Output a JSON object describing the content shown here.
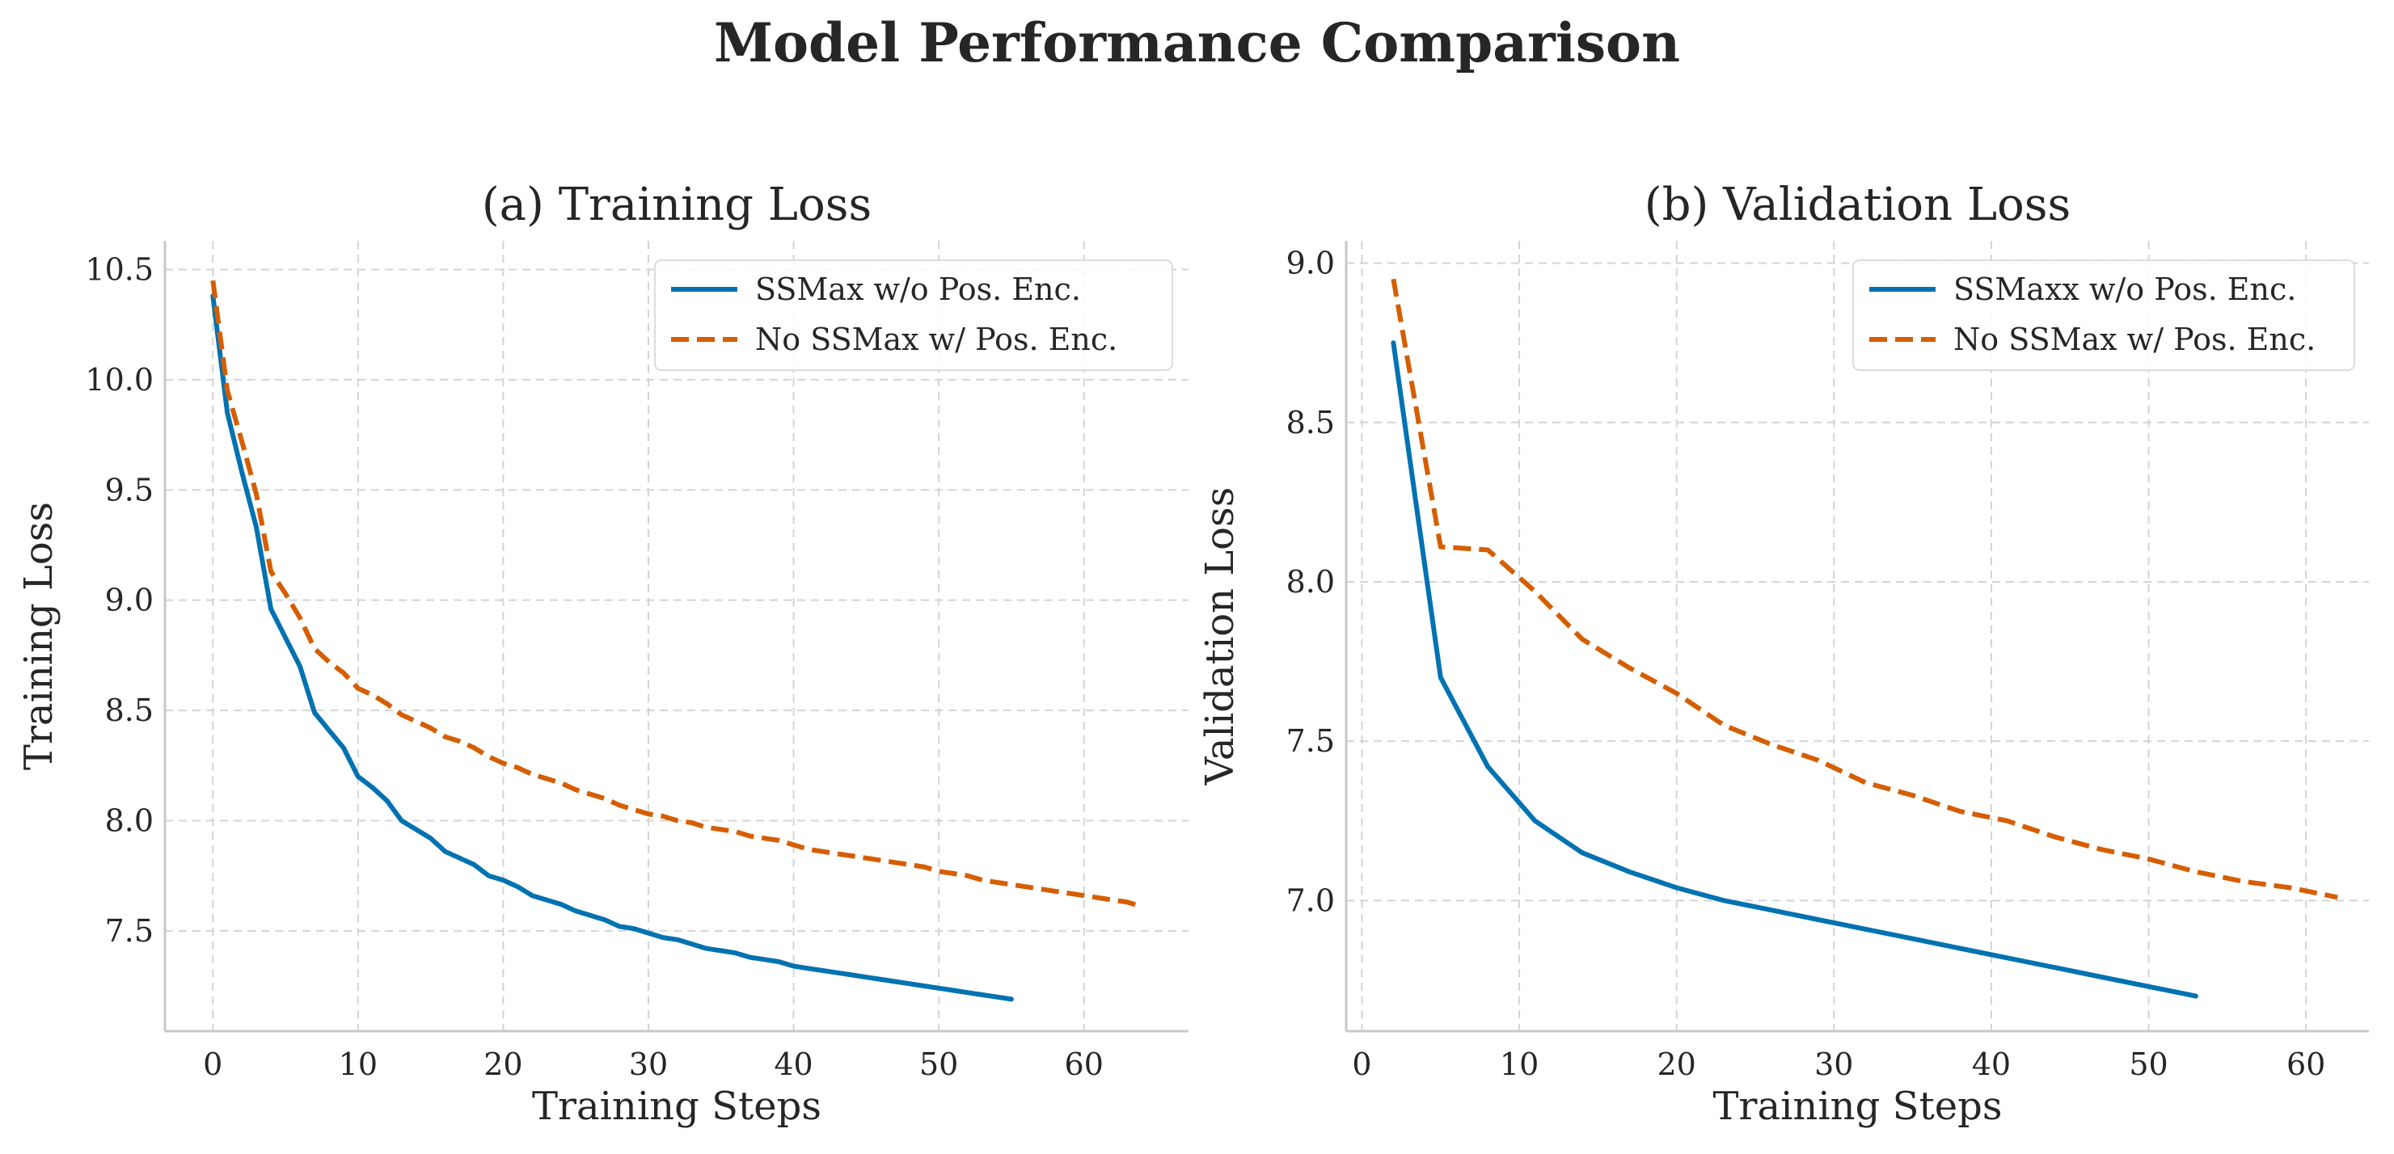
{
  "suptitle": "Model Performance Comparison",
  "colors": {
    "blue": "#0072B2",
    "orange": "#D55E00"
  },
  "chart_data": [
    {
      "type": "line",
      "title": "(a) Training Loss",
      "xlabel": "Training Steps",
      "ylabel": "Training Loss",
      "xlim": [
        -3.3,
        67.2
      ],
      "ylim": [
        7.045,
        10.63
      ],
      "xticks": [
        0,
        10,
        20,
        30,
        40,
        50,
        60
      ],
      "yticks": [
        7.5,
        8.0,
        8.5,
        9.0,
        9.5,
        10.0,
        10.5
      ],
      "grid": true,
      "legend_position": "top-right",
      "series": [
        {
          "name": "SSMax w/o Pos. Enc.",
          "style": "solid",
          "color": "#0072B2",
          "x": [
            0,
            1,
            2,
            3,
            4,
            5,
            6,
            7,
            8,
            9,
            10,
            11,
            12,
            13,
            14,
            15,
            16,
            17,
            18,
            19,
            20,
            21,
            22,
            23,
            24,
            25,
            26,
            27,
            28,
            29,
            30,
            31,
            32,
            33,
            34,
            35,
            36,
            37,
            38,
            39,
            40,
            41,
            42,
            43,
            44,
            45,
            46,
            47,
            48,
            49,
            50,
            51,
            52,
            53,
            54,
            55
          ],
          "y": [
            10.38,
            9.85,
            9.58,
            9.33,
            8.96,
            8.83,
            8.7,
            8.49,
            8.41,
            8.33,
            8.2,
            8.15,
            8.09,
            8.0,
            7.96,
            7.92,
            7.86,
            7.83,
            7.8,
            7.75,
            7.73,
            7.7,
            7.66,
            7.64,
            7.62,
            7.59,
            7.57,
            7.55,
            7.52,
            7.51,
            7.49,
            7.47,
            7.46,
            7.44,
            7.42,
            7.41,
            7.4,
            7.38,
            7.37,
            7.36,
            7.34,
            7.33,
            7.32,
            7.31,
            7.3,
            7.29,
            7.28,
            7.27,
            7.26,
            7.25,
            7.24,
            7.23,
            7.22,
            7.21,
            7.2,
            7.19
          ]
        },
        {
          "name": "No SSMax w/ Pos. Enc.",
          "style": "dashed",
          "color": "#D55E00",
          "x": [
            0,
            1,
            2,
            3,
            4,
            5,
            6,
            7,
            8,
            9,
            10,
            11,
            12,
            13,
            14,
            15,
            16,
            17,
            18,
            19,
            20,
            21,
            22,
            23,
            24,
            25,
            26,
            27,
            28,
            29,
            30,
            31,
            32,
            33,
            34,
            35,
            36,
            37,
            38,
            39,
            40,
            41,
            42,
            43,
            44,
            45,
            46,
            47,
            48,
            49,
            50,
            51,
            52,
            53,
            54,
            55,
            56,
            57,
            58,
            59,
            60,
            61,
            62,
            63,
            64
          ],
          "y": [
            10.45,
            9.95,
            9.72,
            9.48,
            9.13,
            9.03,
            8.92,
            8.78,
            8.72,
            8.67,
            8.6,
            8.57,
            8.53,
            8.48,
            8.45,
            8.42,
            8.38,
            8.36,
            8.33,
            8.29,
            8.26,
            8.24,
            8.21,
            8.19,
            8.17,
            8.14,
            8.12,
            8.1,
            8.07,
            8.05,
            8.03,
            8.02,
            8.0,
            7.99,
            7.97,
            7.96,
            7.95,
            7.93,
            7.92,
            7.91,
            7.89,
            7.87,
            7.86,
            7.85,
            7.84,
            7.83,
            7.82,
            7.81,
            7.8,
            7.79,
            7.77,
            7.76,
            7.75,
            7.73,
            7.72,
            7.71,
            7.7,
            7.69,
            7.68,
            7.67,
            7.66,
            7.65,
            7.64,
            7.63,
            7.61
          ]
        }
      ]
    },
    {
      "type": "line",
      "title": "(b) Validation Loss",
      "xlabel": "Training Steps",
      "ylabel": "Validation Loss",
      "xlim": [
        -1.0,
        64.0
      ],
      "ylim": [
        6.59,
        9.07
      ],
      "xticks": [
        0,
        10,
        20,
        30,
        40,
        50,
        60
      ],
      "yticks": [
        7.0,
        7.5,
        8.0,
        8.5,
        9.0
      ],
      "grid": true,
      "legend_position": "top-right",
      "series": [
        {
          "name": "SSMaxx w/o Pos. Enc.",
          "style": "solid",
          "color": "#0072B2",
          "x": [
            2,
            5,
            8,
            11,
            14,
            17,
            20,
            23,
            26,
            29,
            32,
            35,
            38,
            41,
            44,
            47,
            50,
            53
          ],
          "y": [
            8.75,
            7.7,
            7.42,
            7.25,
            7.15,
            7.09,
            7.04,
            7.0,
            6.97,
            6.94,
            6.91,
            6.88,
            6.85,
            6.82,
            6.79,
            6.76,
            6.73,
            6.7
          ]
        },
        {
          "name": "No SSMax w/ Pos. Enc.",
          "style": "dashed",
          "color": "#D55E00",
          "x": [
            2,
            5,
            8,
            11,
            14,
            17,
            20,
            23,
            26,
            29,
            32,
            35,
            38,
            41,
            44,
            47,
            50,
            53,
            56,
            59,
            62
          ],
          "y": [
            8.95,
            8.11,
            8.1,
            7.97,
            7.82,
            7.73,
            7.65,
            7.55,
            7.49,
            7.44,
            7.37,
            7.33,
            7.28,
            7.25,
            7.2,
            7.16,
            7.13,
            7.09,
            7.06,
            7.04,
            7.01
          ]
        }
      ]
    }
  ]
}
